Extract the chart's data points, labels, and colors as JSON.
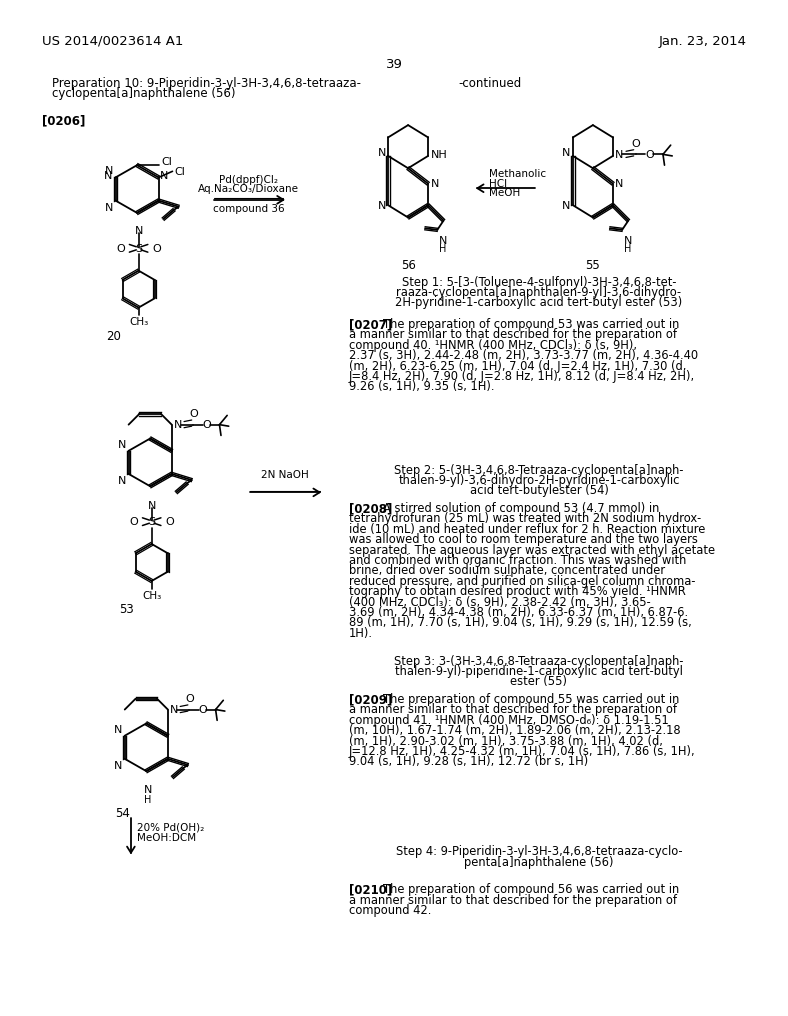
{
  "page_header_left": "US 2014/0023614 A1",
  "page_header_right": "Jan. 23, 2014",
  "page_number": "39",
  "bg_color": "#ffffff"
}
